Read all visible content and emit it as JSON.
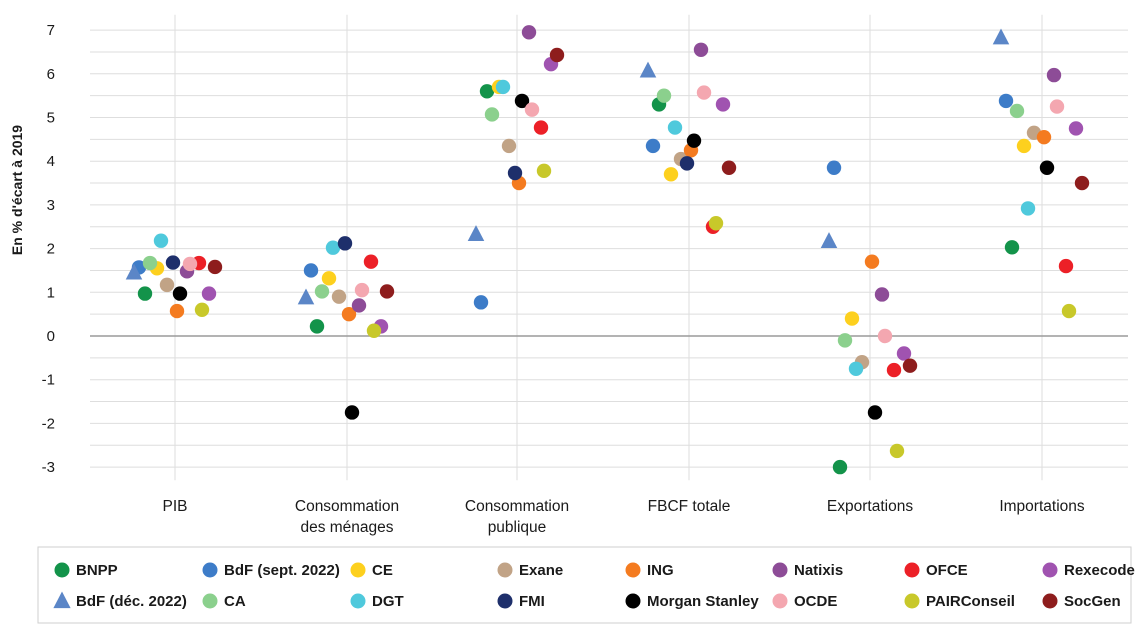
{
  "chart_data": {
    "type": "scatter",
    "ylabel": "En % d'écart à 2019",
    "ylim": [
      -3.3,
      7.4
    ],
    "yticks": [
      -3,
      -2,
      -1,
      0,
      1,
      2,
      3,
      4,
      5,
      6,
      7
    ],
    "grid": true,
    "legend_position": "bottom",
    "categories": [
      [
        "PIB"
      ],
      [
        "Consommation",
        "des ménages"
      ],
      [
        "Consommation",
        "publique"
      ],
      [
        "FBCF totale"
      ],
      [
        "Exportations"
      ],
      [
        "Importations"
      ]
    ],
    "series": [
      {
        "name": "BNPP",
        "color": "#13934a",
        "marker": "circle",
        "values": [
          0.97,
          0.22,
          5.6,
          5.3,
          -3.0,
          2.03
        ]
      },
      {
        "name": "BdF (sept. 2022)",
        "color": "#3d7cc8",
        "marker": "circle",
        "values": [
          1.57,
          1.5,
          0.77,
          4.35,
          3.85,
          5.38
        ]
      },
      {
        "name": "CE",
        "color": "#fdd01e",
        "marker": "circle",
        "values": [
          1.55,
          1.32,
          5.7,
          3.7,
          0.4,
          4.35
        ]
      },
      {
        "name": "Exane",
        "color": "#c1a386",
        "marker": "circle",
        "values": [
          1.17,
          0.9,
          4.35,
          4.05,
          -0.6,
          4.65
        ]
      },
      {
        "name": "ING",
        "color": "#f47b20",
        "marker": "circle",
        "values": [
          0.57,
          0.5,
          3.5,
          4.25,
          1.7,
          4.55
        ]
      },
      {
        "name": "Natixis",
        "color": "#8d4c97",
        "marker": "circle",
        "values": [
          1.48,
          0.7,
          6.95,
          6.55,
          0.95,
          5.97
        ]
      },
      {
        "name": "OFCE",
        "color": "#ec2027",
        "marker": "circle",
        "values": [
          1.67,
          1.7,
          4.77,
          2.5,
          -0.78,
          1.6
        ]
      },
      {
        "name": "Rexecode",
        "color": "#a053b0",
        "marker": "circle",
        "values": [
          0.97,
          0.22,
          6.22,
          5.3,
          -0.4,
          4.75
        ]
      },
      {
        "name": "BdF (déc. 2022)",
        "color": "#5b86c7",
        "marker": "triangle",
        "values": [
          1.45,
          0.88,
          2.33,
          6.07,
          2.17,
          6.83
        ]
      },
      {
        "name": "CA",
        "color": "#8bd08d",
        "marker": "circle",
        "values": [
          1.67,
          1.02,
          5.07,
          5.5,
          -0.1,
          5.15
        ]
      },
      {
        "name": "DGT",
        "color": "#4fc9dc",
        "marker": "circle",
        "values": [
          2.18,
          2.02,
          5.7,
          4.77,
          -0.75,
          2.92
        ]
      },
      {
        "name": "FMI",
        "color": "#1e2f6b",
        "marker": "circle",
        "values": [
          1.68,
          2.12,
          3.73,
          3.95,
          null,
          null
        ]
      },
      {
        "name": "Morgan Stanley",
        "color": "#000000",
        "marker": "circle",
        "values": [
          0.97,
          -1.75,
          5.38,
          4.47,
          -1.75,
          3.85
        ]
      },
      {
        "name": "OCDE",
        "color": "#f4a7b0",
        "marker": "circle",
        "values": [
          1.65,
          1.05,
          5.18,
          5.57,
          0.0,
          5.25
        ]
      },
      {
        "name": "PAIRConseil",
        "color": "#c8c82a",
        "marker": "circle",
        "values": [
          0.6,
          0.12,
          3.78,
          2.58,
          -2.63,
          0.57
        ]
      },
      {
        "name": "SocGen",
        "color": "#8e1d1d",
        "marker": "circle",
        "values": [
          1.58,
          1.02,
          6.43,
          3.85,
          -0.68,
          3.5
        ]
      }
    ]
  }
}
